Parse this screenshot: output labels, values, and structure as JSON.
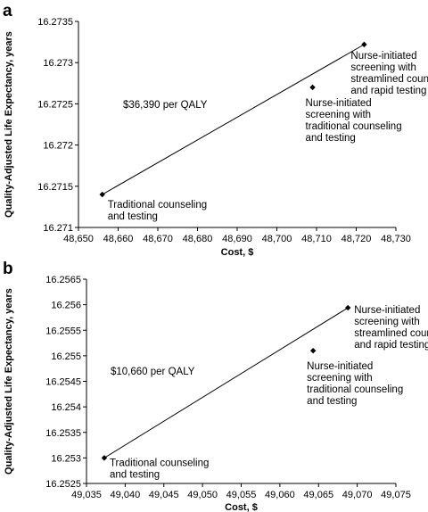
{
  "chart_data": [
    {
      "panel": "a",
      "type": "scatter",
      "xlabel": "Cost, $",
      "ylabel": "Quality-Adjusted Life Expectancy, years",
      "xlim": [
        48650,
        48730
      ],
      "ylim": [
        16.271,
        16.2735
      ],
      "x_ticks": [
        "48,650",
        "48,660",
        "48,670",
        "48,680",
        "48,690",
        "48,700",
        "48,710",
        "48,720",
        "48,730"
      ],
      "y_ticks": [
        "16.271",
        "16.2715",
        "16.272",
        "16.2725",
        "16.273",
        "16.2735"
      ],
      "points": [
        {
          "x": 48656,
          "y": 16.2714,
          "label": [
            "Traditional counseling",
            "and testing"
          ]
        },
        {
          "x": 48709,
          "y": 16.2727,
          "label": [
            "Nurse-initiated",
            "screening with",
            "traditional counseling",
            "and testing"
          ]
        },
        {
          "x": 48722,
          "y": 16.27322,
          "label": [
            "Nurse-initiated",
            "screening with",
            "streamlined counseling",
            "and rapid testing"
          ]
        }
      ],
      "line": {
        "from_point": 0,
        "to_point": 2
      },
      "annotation": "$36,390 per  QALY",
      "grid": false,
      "legend": "none"
    },
    {
      "panel": "b",
      "type": "scatter",
      "xlabel": "Cost, $",
      "ylabel": "Quality-Adjusted Life Expectancy, years",
      "xlim": [
        49035,
        49075
      ],
      "ylim": [
        16.2525,
        16.2565
      ],
      "x_ticks": [
        "49,035",
        "49,040",
        "49,045",
        "49,050",
        "49,055",
        "49,060",
        "49,065",
        "49,070",
        "49,075"
      ],
      "y_ticks": [
        "16.2525",
        "16.253",
        "16.2535",
        "16.254",
        "16.2545",
        "16.255",
        "16.2555",
        "16.256",
        "16.2565"
      ],
      "points": [
        {
          "x": 49037.3,
          "y": 16.253,
          "label": [
            "Traditional counseling",
            "and testing"
          ]
        },
        {
          "x": 49064.3,
          "y": 16.2551,
          "label": [
            "Nurse-initiated",
            "screening with",
            "traditional counseling",
            "and testing"
          ]
        },
        {
          "x": 49068.8,
          "y": 16.25594,
          "label": [
            "Nurse-initiated",
            "screening with",
            "streamlined counseling",
            "and rapid testing"
          ]
        }
      ],
      "line": {
        "from_point": 0,
        "to_point": 2
      },
      "annotation": "$10,660 per QALY",
      "grid": false,
      "legend": "none"
    }
  ]
}
